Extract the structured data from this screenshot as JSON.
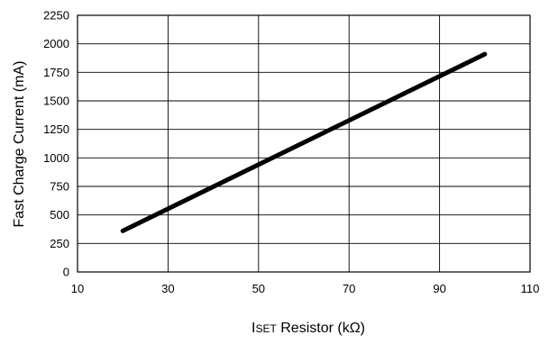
{
  "chart_data": {
    "type": "line",
    "title": "",
    "xlabel": "Iset Resistor (kΩ)",
    "xlabel_parts": {
      "main": "I",
      "sub": "SET",
      "rest": " Resistor (kΩ)"
    },
    "ylabel": "Fast Charge Current (mA)",
    "xlim": [
      10,
      110
    ],
    "ylim": [
      0,
      2250
    ],
    "x_ticks": [
      10,
      30,
      50,
      70,
      90,
      110
    ],
    "y_ticks": [
      0,
      250,
      500,
      750,
      1000,
      1250,
      1500,
      1750,
      2000,
      2250
    ],
    "x_tick_labels": [
      "10",
      "30",
      "50",
      "70",
      "90",
      "110"
    ],
    "y_tick_labels": [
      "0",
      "250",
      "500",
      "750",
      "1000",
      "1250",
      "1500",
      "1750",
      "2000",
      "2250"
    ],
    "grid": true,
    "legend": "none",
    "series": [
      {
        "x": [
          20,
          100
        ],
        "y": [
          360,
          1910
        ],
        "color": "#000000"
      }
    ]
  }
}
